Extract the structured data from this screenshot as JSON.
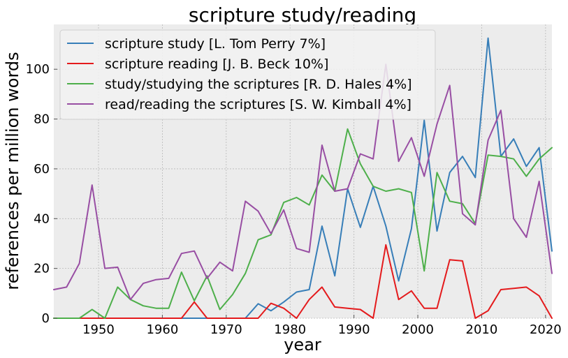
{
  "chart_data": {
    "type": "line",
    "title": "scripture study/reading",
    "xlabel": "year",
    "ylabel": "references per million words",
    "xlim": [
      1943,
      2021
    ],
    "ylim": [
      0,
      118
    ],
    "xticks": [
      1950,
      1960,
      1970,
      1980,
      1990,
      2000,
      2010,
      2020
    ],
    "yticks": [
      0,
      20,
      40,
      60,
      80,
      100
    ],
    "grid": true,
    "legend_position": "upper-left",
    "series": [
      {
        "name": "scripture study [L. Tom Perry 7%]",
        "color": "#377eb8",
        "x": [
          1943,
          1945,
          1947,
          1949,
          1951,
          1953,
          1955,
          1957,
          1959,
          1961,
          1963,
          1965,
          1967,
          1969,
          1971,
          1973,
          1975,
          1977,
          1979,
          1981,
          1983,
          1985,
          1987,
          1989,
          1991,
          1993,
          1995,
          1997,
          1999,
          2001,
          2003,
          2005,
          2007,
          2009,
          2011,
          2013,
          2015,
          2017,
          2019,
          2021
        ],
        "y": [
          0,
          0,
          0,
          0,
          0,
          0,
          0,
          0,
          0,
          0,
          0,
          0,
          0,
          0,
          0,
          0,
          5.8,
          3,
          6.5,
          10.5,
          11.5,
          37,
          17,
          52,
          36.5,
          53,
          37,
          15,
          36,
          79.5,
          35,
          58.5,
          65,
          56.5,
          112.5,
          65,
          72,
          61,
          68.5,
          27
        ]
      },
      {
        "name": "scripture reading [J. B. Beck 10%]",
        "color": "#e41a1c",
        "x": [
          1943,
          1945,
          1947,
          1949,
          1951,
          1953,
          1955,
          1957,
          1959,
          1961,
          1963,
          1965,
          1967,
          1969,
          1971,
          1973,
          1975,
          1977,
          1979,
          1981,
          1983,
          1985,
          1987,
          1989,
          1991,
          1993,
          1995,
          1997,
          1999,
          2001,
          2003,
          2005,
          2007,
          2009,
          2011,
          2013,
          2015,
          2017,
          2019,
          2021
        ],
        "y": [
          0,
          0,
          0,
          0,
          0,
          0,
          0,
          0,
          0,
          0,
          0,
          6.5,
          0,
          0,
          0,
          0,
          0,
          6,
          4,
          0,
          7.5,
          12.5,
          4.5,
          4,
          3.5,
          0,
          29.5,
          7.5,
          11,
          4,
          4,
          23.5,
          23,
          0,
          3,
          11.5,
          12,
          12.5,
          9,
          0
        ]
      },
      {
        "name": "study/studying the scriptures [R. D. Hales 4%]",
        "color": "#4daf4a",
        "x": [
          1943,
          1945,
          1947,
          1949,
          1951,
          1953,
          1955,
          1957,
          1959,
          1961,
          1963,
          1965,
          1967,
          1969,
          1971,
          1973,
          1975,
          1977,
          1979,
          1981,
          1983,
          1985,
          1987,
          1989,
          1991,
          1993,
          1995,
          1997,
          1999,
          2001,
          2003,
          2005,
          2007,
          2009,
          2011,
          2013,
          2015,
          2017,
          2019,
          2021
        ],
        "y": [
          0,
          0,
          0,
          3.5,
          0,
          12.5,
          7.5,
          5,
          4,
          4,
          18.5,
          7,
          17,
          3.5,
          9.5,
          18,
          31.5,
          33.5,
          46.5,
          48.5,
          45.5,
          57.5,
          51,
          76,
          62,
          53,
          51,
          52,
          50.5,
          19,
          58.5,
          47,
          46,
          38,
          65.5,
          65,
          64,
          57,
          64,
          68.5
        ]
      },
      {
        "name": "read/reading the scriptures [S. W. Kimball 4%]",
        "color": "#984ea3",
        "x": [
          1943,
          1945,
          1947,
          1949,
          1951,
          1953,
          1955,
          1957,
          1959,
          1961,
          1963,
          1965,
          1967,
          1969,
          1971,
          1973,
          1975,
          1977,
          1979,
          1981,
          1983,
          1985,
          1987,
          1989,
          1991,
          1993,
          1995,
          1997,
          1999,
          2001,
          2003,
          2005,
          2007,
          2009,
          2011,
          2013,
          2015,
          2017,
          2019,
          2021
        ],
        "y": [
          11.5,
          12.5,
          22,
          53.5,
          20,
          20.5,
          7.5,
          14,
          15.5,
          16,
          26,
          27,
          16,
          22.5,
          19,
          47,
          43,
          34,
          43.5,
          28,
          26.5,
          69.5,
          51,
          52,
          66,
          64,
          102,
          63,
          72.5,
          57,
          78,
          93.5,
          42,
          37.5,
          71.5,
          83.5,
          40,
          32.5,
          55,
          18
        ]
      }
    ]
  }
}
